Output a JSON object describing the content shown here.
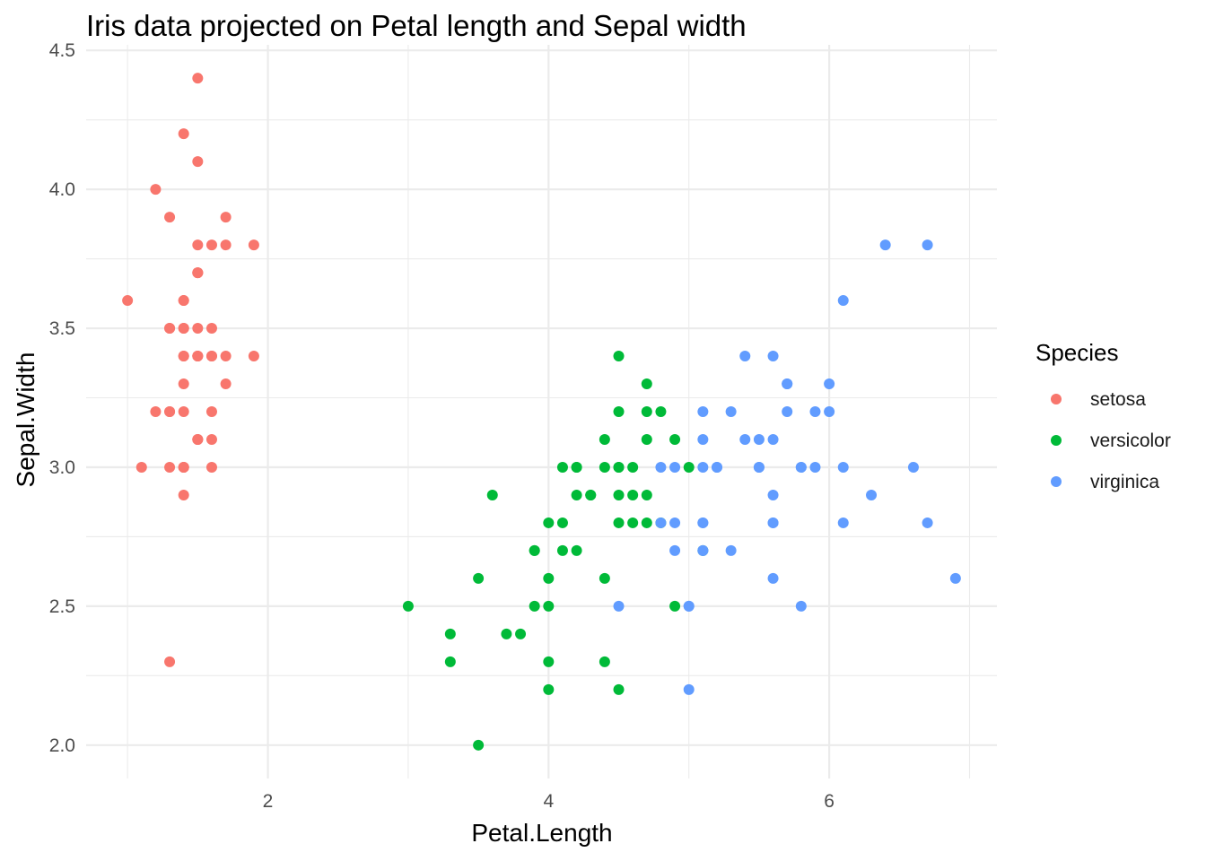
{
  "chart_data": {
    "type": "scatter",
    "title": "Iris data projected on Petal length and Sepal width",
    "xlabel": "Petal.Length",
    "ylabel": "Sepal.Width",
    "xlim": [
      0.705,
      7.195
    ],
    "ylim": [
      1.88,
      4.52
    ],
    "x_ticks": [
      2,
      4,
      6
    ],
    "x_tick_labels": [
      "2",
      "4",
      "6"
    ],
    "y_ticks": [
      2.0,
      2.5,
      3.0,
      3.5,
      4.0,
      4.5
    ],
    "y_tick_labels": [
      "2.0",
      "2.5",
      "3.0",
      "3.5",
      "4.0",
      "4.5"
    ],
    "grid": true,
    "legend": {
      "title": "Species",
      "position": "right"
    },
    "series": [
      {
        "name": "setosa",
        "color": "#F8766D",
        "points": [
          [
            1.4,
            3.5
          ],
          [
            1.4,
            3.0
          ],
          [
            1.3,
            3.2
          ],
          [
            1.5,
            3.1
          ],
          [
            1.4,
            3.6
          ],
          [
            1.7,
            3.9
          ],
          [
            1.4,
            3.4
          ],
          [
            1.5,
            3.4
          ],
          [
            1.4,
            2.9
          ],
          [
            1.5,
            3.1
          ],
          [
            1.5,
            3.7
          ],
          [
            1.6,
            3.4
          ],
          [
            1.4,
            3.0
          ],
          [
            1.1,
            3.0
          ],
          [
            1.2,
            4.0
          ],
          [
            1.5,
            4.4
          ],
          [
            1.3,
            3.9
          ],
          [
            1.4,
            3.5
          ],
          [
            1.7,
            3.8
          ],
          [
            1.5,
            3.8
          ],
          [
            1.7,
            3.4
          ],
          [
            1.5,
            3.7
          ],
          [
            1.0,
            3.6
          ],
          [
            1.7,
            3.3
          ],
          [
            1.9,
            3.4
          ],
          [
            1.6,
            3.0
          ],
          [
            1.6,
            3.4
          ],
          [
            1.5,
            3.5
          ],
          [
            1.4,
            3.4
          ],
          [
            1.6,
            3.2
          ],
          [
            1.6,
            3.1
          ],
          [
            1.5,
            3.4
          ],
          [
            1.5,
            4.1
          ],
          [
            1.4,
            4.2
          ],
          [
            1.5,
            3.1
          ],
          [
            1.2,
            3.2
          ],
          [
            1.3,
            3.5
          ],
          [
            1.4,
            3.6
          ],
          [
            1.3,
            3.0
          ],
          [
            1.5,
            3.4
          ],
          [
            1.3,
            3.5
          ],
          [
            1.3,
            2.3
          ],
          [
            1.3,
            3.2
          ],
          [
            1.6,
            3.5
          ],
          [
            1.9,
            3.8
          ],
          [
            1.4,
            3.0
          ],
          [
            1.6,
            3.8
          ],
          [
            1.4,
            3.2
          ],
          [
            1.5,
            3.7
          ],
          [
            1.4,
            3.3
          ]
        ]
      },
      {
        "name": "versicolor",
        "color": "#00BA38",
        "points": [
          [
            4.7,
            3.2
          ],
          [
            4.5,
            3.2
          ],
          [
            4.9,
            3.1
          ],
          [
            4.0,
            2.3
          ],
          [
            4.6,
            2.8
          ],
          [
            4.5,
            2.8
          ],
          [
            4.7,
            3.3
          ],
          [
            3.3,
            2.4
          ],
          [
            4.6,
            2.9
          ],
          [
            3.9,
            2.7
          ],
          [
            3.5,
            2.0
          ],
          [
            4.2,
            3.0
          ],
          [
            4.0,
            2.2
          ],
          [
            4.7,
            2.9
          ],
          [
            3.6,
            2.9
          ],
          [
            4.4,
            3.1
          ],
          [
            4.5,
            3.0
          ],
          [
            4.1,
            2.7
          ],
          [
            4.5,
            2.2
          ],
          [
            3.9,
            2.5
          ],
          [
            4.8,
            3.2
          ],
          [
            4.0,
            2.8
          ],
          [
            4.9,
            2.5
          ],
          [
            4.7,
            2.8
          ],
          [
            4.3,
            2.9
          ],
          [
            4.4,
            3.0
          ],
          [
            4.8,
            2.8
          ],
          [
            5.0,
            3.0
          ],
          [
            4.5,
            2.9
          ],
          [
            3.5,
            2.6
          ],
          [
            3.8,
            2.4
          ],
          [
            3.7,
            2.4
          ],
          [
            3.9,
            2.7
          ],
          [
            5.1,
            2.7
          ],
          [
            4.5,
            3.0
          ],
          [
            4.5,
            3.4
          ],
          [
            4.7,
            3.1
          ],
          [
            4.4,
            2.3
          ],
          [
            4.1,
            3.0
          ],
          [
            4.0,
            2.5
          ],
          [
            4.4,
            2.6
          ],
          [
            4.6,
            3.0
          ],
          [
            4.0,
            2.6
          ],
          [
            3.3,
            2.3
          ],
          [
            4.2,
            2.7
          ],
          [
            4.2,
            3.0
          ],
          [
            4.2,
            2.9
          ],
          [
            4.3,
            2.9
          ],
          [
            3.0,
            2.5
          ],
          [
            4.1,
            2.8
          ]
        ]
      },
      {
        "name": "virginica",
        "color": "#619CFF",
        "points": [
          [
            6.0,
            3.3
          ],
          [
            5.1,
            2.7
          ],
          [
            5.9,
            3.0
          ],
          [
            5.6,
            2.9
          ],
          [
            5.8,
            3.0
          ],
          [
            6.6,
            3.0
          ],
          [
            4.5,
            2.5
          ],
          [
            6.3,
            2.9
          ],
          [
            5.8,
            2.5
          ],
          [
            6.1,
            3.6
          ],
          [
            5.1,
            3.2
          ],
          [
            5.3,
            2.7
          ],
          [
            5.5,
            3.0
          ],
          [
            5.0,
            2.5
          ],
          [
            5.1,
            2.8
          ],
          [
            5.3,
            3.2
          ],
          [
            5.5,
            3.0
          ],
          [
            6.7,
            3.8
          ],
          [
            6.9,
            2.6
          ],
          [
            5.0,
            2.2
          ],
          [
            5.7,
            3.2
          ],
          [
            4.9,
            2.8
          ],
          [
            6.7,
            2.8
          ],
          [
            4.9,
            2.7
          ],
          [
            5.7,
            3.3
          ],
          [
            6.0,
            3.2
          ],
          [
            4.8,
            2.8
          ],
          [
            4.9,
            3.0
          ],
          [
            5.6,
            2.8
          ],
          [
            5.8,
            3.0
          ],
          [
            6.1,
            2.8
          ],
          [
            6.4,
            3.8
          ],
          [
            5.6,
            2.8
          ],
          [
            5.1,
            2.8
          ],
          [
            5.6,
            2.6
          ],
          [
            6.1,
            3.0
          ],
          [
            5.6,
            3.4
          ],
          [
            5.5,
            3.1
          ],
          [
            4.8,
            3.0
          ],
          [
            5.4,
            3.1
          ],
          [
            5.6,
            3.1
          ],
          [
            5.1,
            3.1
          ],
          [
            5.1,
            2.7
          ],
          [
            5.9,
            3.2
          ],
          [
            5.7,
            3.3
          ],
          [
            5.2,
            3.0
          ],
          [
            5.0,
            2.5
          ],
          [
            5.2,
            3.0
          ],
          [
            5.4,
            3.4
          ],
          [
            5.1,
            3.0
          ]
        ]
      }
    ]
  }
}
